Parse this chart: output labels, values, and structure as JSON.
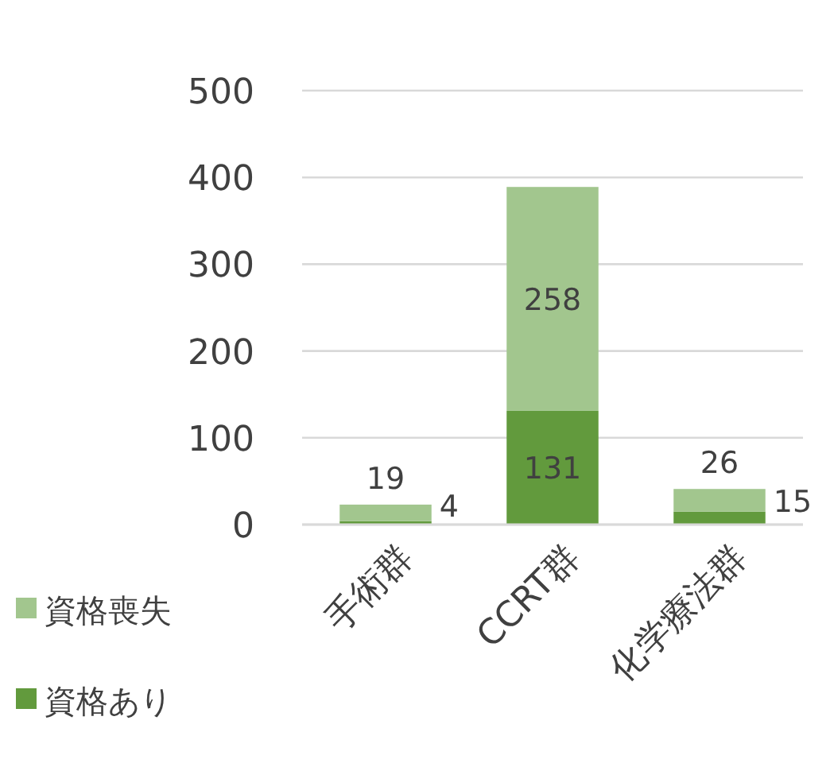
{
  "chart_data": {
    "type": "bar",
    "stacked": true,
    "categories": [
      "手術群",
      "CCRT群",
      "化学療法群"
    ],
    "series": [
      {
        "name": "資格あり",
        "color": "#629a3d",
        "values": [
          4,
          131,
          15
        ]
      },
      {
        "name": "資格喪失",
        "color": "#a2c68e",
        "values": [
          19,
          258,
          26
        ]
      }
    ],
    "ylim": [
      0,
      500
    ],
    "yticks": [
      0,
      100,
      200,
      300,
      400,
      500
    ],
    "grid": "y",
    "legend": "left",
    "data_labels": true
  }
}
